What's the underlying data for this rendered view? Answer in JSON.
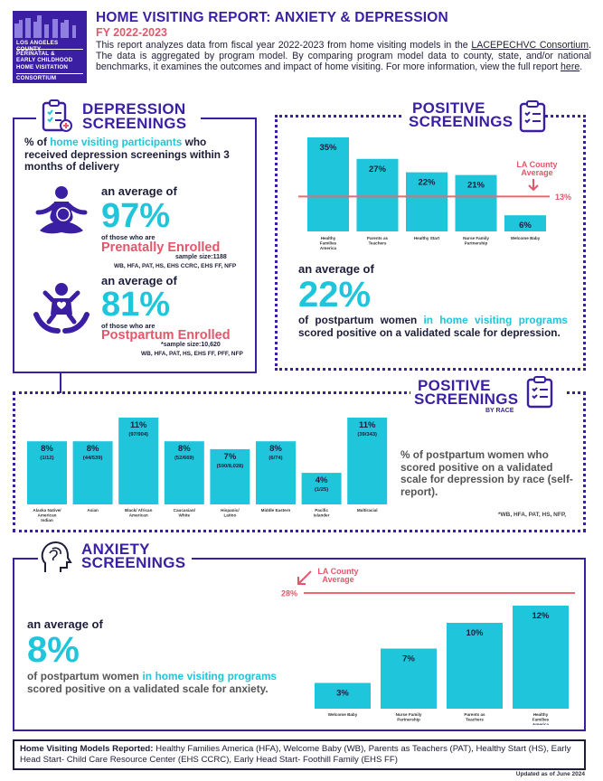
{
  "header": {
    "logo_lines": [
      "LOS ANGELES COUNTY",
      "PERINATAL &",
      "EARLY CHILDHOOD",
      "HOME VISITATION",
      "CONSORTIUM"
    ],
    "title": "HOME VISITING REPORT: ANXIETY & DEPRESSION",
    "subtitle": "FY 2022-2023",
    "intro_1": "This report analyzes data from fiscal year 2022-2023 from home visiting models in the ",
    "intro_link": "LACEPECHVC Consortium",
    "intro_2": ". The data is aggregated by program model. By comparing program model data to county, state, and/or national benchmarks, it examines the outcomes and impact of home visiting. For more information, view the full report ",
    "intro_link2": "here",
    "intro_3": "."
  },
  "depression": {
    "title_1": "DEPRESSION",
    "title_2": "SCREENINGS",
    "lead_1": "% of ",
    "lead_hl": "home visiting participants",
    "lead_2": " who received depression screenings within 3 months of delivery",
    "prenatal": {
      "avg_label": "an average of",
      "value": "97%",
      "of_label": "of those who are",
      "group": "Prenatally Enrolled",
      "sample": "sample size:1188",
      "models": "WB, HFA, PAT, HS, EHS CCRC, EHS FF, NFP"
    },
    "postpartum": {
      "avg_label": "an average of",
      "value": "81%",
      "of_label": "of those who are",
      "group": "Postpartum Enrolled",
      "sample": "*sample size:10,620",
      "models": "WB, HFA, PAT, HS, EHS FF, PFF, NFP"
    }
  },
  "positive": {
    "title_1": "POSITIVE",
    "title_2": "SCREENINGS",
    "county_label_1": "LA County",
    "county_label_2": "Average",
    "county_value": "13%",
    "avg_label": "an average of",
    "value": "22%",
    "text_1": "of postpartum women ",
    "text_hl": "in home visiting programs",
    "text_2": " scored positive on a validated scale for depression."
  },
  "race": {
    "title_1": "POSITIVE",
    "title_2": "SCREENINGS",
    "by": "BY RACE",
    "text": "% of postpartum women who scored positive on a validated scale for depression by race (self-report).",
    "models": "*WB, HFA, PAT, HS, NFP,"
  },
  "anxiety": {
    "title_1": "ANXIETY",
    "title_2": "SCREENINGS",
    "county_label_1": "LA County",
    "county_label_2": "Average",
    "county_value": "28%",
    "avg_label": "an average of",
    "value": "8%",
    "text_1": "of postpartum women ",
    "text_hl": "in home visiting programs",
    "text_2": " scored positive on a validated scale for anxiety."
  },
  "footer": {
    "label": "Home Visiting Models Reported:",
    "text": " Healthy Families America (HFA), Welcome Baby (WB), Parents as Teachers (PAT), Healthy Start (HS), Early Head Start- Child Care Resource Center (EHS CCRC), Early Head Start- Foothill Family (EHS FF)",
    "updated": "Updated as of June 2024"
  },
  "colors": {
    "purple": "#3b1fa3",
    "cyan": "#1fc5db",
    "red": "#e4566a"
  },
  "chart_data": [
    {
      "type": "bar",
      "title": "",
      "categories": [
        "Healthy Families America",
        "Parents as Teachers",
        "Healthy Start",
        "Nurse Family Partnership",
        "Welcome Baby"
      ],
      "values": [
        35,
        27,
        22,
        21,
        6
      ],
      "labels": [
        "35%",
        "27%",
        "22%",
        "21%",
        "6%"
      ],
      "reference_line": {
        "value": 13
      },
      "ylim": [
        0,
        35
      ]
    },
    {
      "type": "bar",
      "title": "",
      "categories": [
        "Alaska Native/ American Indian",
        "Asian",
        "Black/ African American",
        "Caucasian/ White",
        "Hispanic/ Latino",
        "Middle Eastern",
        "Pacific Islander",
        "Multiracial"
      ],
      "values": [
        8,
        8,
        11,
        8,
        7,
        8,
        4,
        11
      ],
      "labels": [
        "8%",
        "8%",
        "11%",
        "8%",
        "7%",
        "8%",
        "4%",
        "11%"
      ],
      "sublabels": [
        "(1/12)",
        "(44/539)",
        "(97/904)",
        "(52/669)",
        "(590/8,028)",
        "(6/74)",
        "(1/25)",
        "(39/343)"
      ],
      "ylim": [
        0,
        11
      ]
    },
    {
      "type": "bar",
      "title": "",
      "categories": [
        "Welcome Baby",
        "Nurse Family Partnership",
        "Parents as Teachers",
        "Healthy Families America"
      ],
      "values": [
        3,
        7,
        10,
        12
      ],
      "labels": [
        "3%",
        "7%",
        "10%",
        "12%"
      ],
      "reference_line": {
        "value": 28
      },
      "ylim": [
        0,
        12
      ]
    }
  ]
}
